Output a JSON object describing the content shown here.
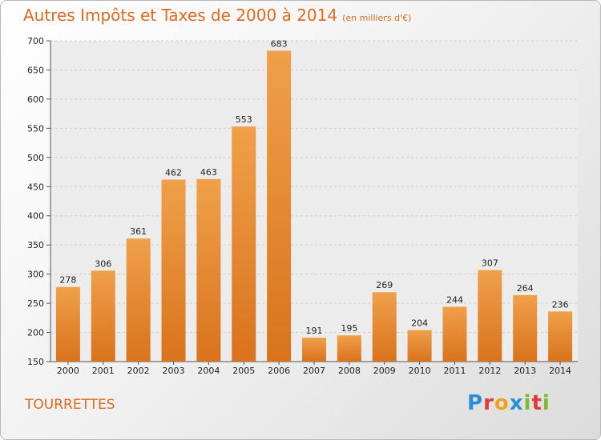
{
  "chart_data": {
    "type": "bar",
    "title": "Autres Impôts et Taxes de 2000 à 2014",
    "subtitle": "(en milliers d'€)",
    "categories": [
      "2000",
      "2001",
      "2002",
      "2003",
      "2004",
      "2005",
      "2006",
      "2007",
      "2008",
      "2009",
      "2010",
      "2011",
      "2012",
      "2013",
      "2014"
    ],
    "values": [
      278,
      306,
      361,
      462,
      463,
      553,
      683,
      191,
      195,
      269,
      204,
      244,
      307,
      264,
      236
    ],
    "ylim": [
      150,
      700
    ],
    "yticks": [
      150,
      200,
      250,
      300,
      350,
      400,
      450,
      500,
      550,
      600,
      650,
      700
    ],
    "grid": true,
    "bar_color": "#f0a04a",
    "bar_color_dark": "#d9731c"
  },
  "footer": {
    "place": "TOURRETTES",
    "logo_letters": [
      "P",
      "r",
      "o",
      "x",
      "i",
      "t",
      "i"
    ],
    "logo_colors": [
      "#2a8fd8",
      "#e03a3a",
      "#f0a020",
      "#2a8fd8",
      "#7dbb2a",
      "#e03a3a",
      "#7dbb2a"
    ]
  }
}
